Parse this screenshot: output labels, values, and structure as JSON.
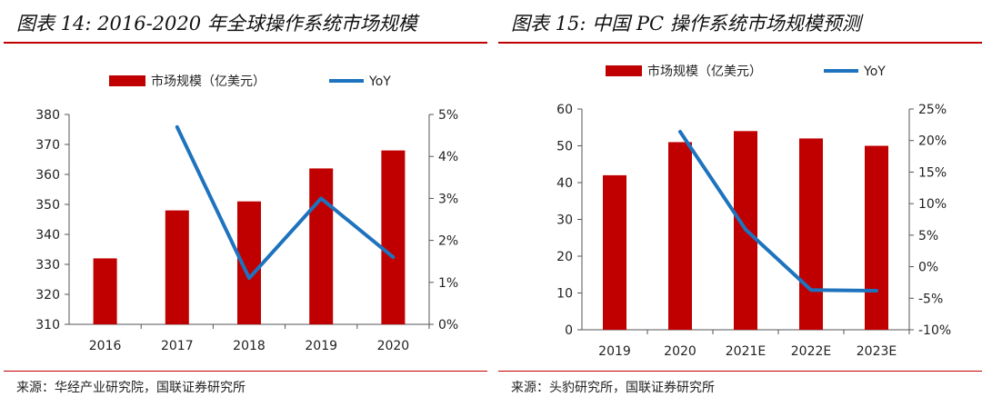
{
  "chart_data": [
    {
      "type": "bar+line",
      "title": "图表 14: 2016-2020 年全球操作系统市场规模",
      "source": "来源：华经产业研究院，国联证券研究所",
      "categories": [
        "2016",
        "2017",
        "2018",
        "2019",
        "2020"
      ],
      "series": [
        {
          "name": "市场规模（亿美元）",
          "type": "bar",
          "axis": "left",
          "values": [
            332,
            348,
            351,
            362,
            368
          ]
        },
        {
          "name": "YoY",
          "type": "line",
          "axis": "right",
          "values": [
            null,
            4.7,
            1.1,
            3.0,
            1.6
          ]
        }
      ],
      "ylim_left": [
        310,
        380
      ],
      "yticks_left": [
        "310",
        "320",
        "330",
        "340",
        "350",
        "360",
        "370",
        "380"
      ],
      "ylim_right": [
        0,
        5
      ],
      "yticks_right": [
        "0%",
        "1%",
        "2%",
        "3%",
        "4%",
        "5%"
      ],
      "colors": {
        "bar": "#c00000",
        "line": "#1e73be"
      }
    },
    {
      "type": "bar+line",
      "title": "图表 15: 中国 PC 操作系统市场规模预测",
      "source": "来源：头豹研究所，国联证券研究所",
      "categories": [
        "2019",
        "2020",
        "2021E",
        "2022E",
        "2023E"
      ],
      "series": [
        {
          "name": "市场规模（亿美元）",
          "type": "bar",
          "axis": "left",
          "values": [
            42,
            51,
            54,
            52,
            50
          ]
        },
        {
          "name": "YoY",
          "type": "line",
          "axis": "right",
          "values": [
            null,
            21.4,
            5.9,
            -3.7,
            -3.8
          ]
        }
      ],
      "ylim_left": [
        0,
        60
      ],
      "yticks_left": [
        "0",
        "10",
        "20",
        "30",
        "40",
        "50",
        "60"
      ],
      "ylim_right": [
        -10,
        25
      ],
      "yticks_right": [
        "-10%",
        "-5%",
        "0%",
        "5%",
        "10%",
        "15%",
        "20%",
        "25%"
      ],
      "colors": {
        "bar": "#c00000",
        "line": "#1e73be"
      }
    }
  ]
}
